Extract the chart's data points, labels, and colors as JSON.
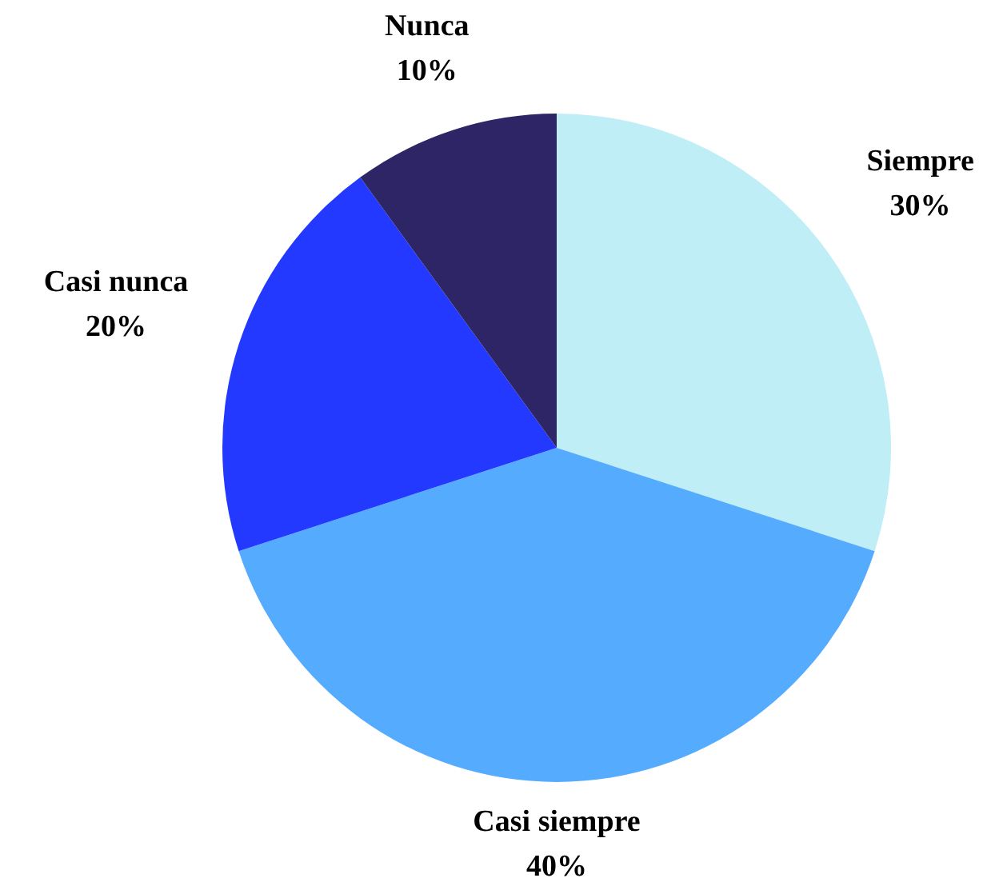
{
  "chart_data": {
    "type": "pie",
    "categories": [
      "Siempre",
      "Casi siempre",
      "Casi nunca",
      "Nunca"
    ],
    "values": [
      30,
      40,
      20,
      10
    ],
    "colors": [
      "#bfeef6",
      "#55acff",
      "#2339ff",
      "#2d2566"
    ],
    "value_labels": [
      "30%",
      "40%",
      "20%",
      "10%"
    ]
  }
}
